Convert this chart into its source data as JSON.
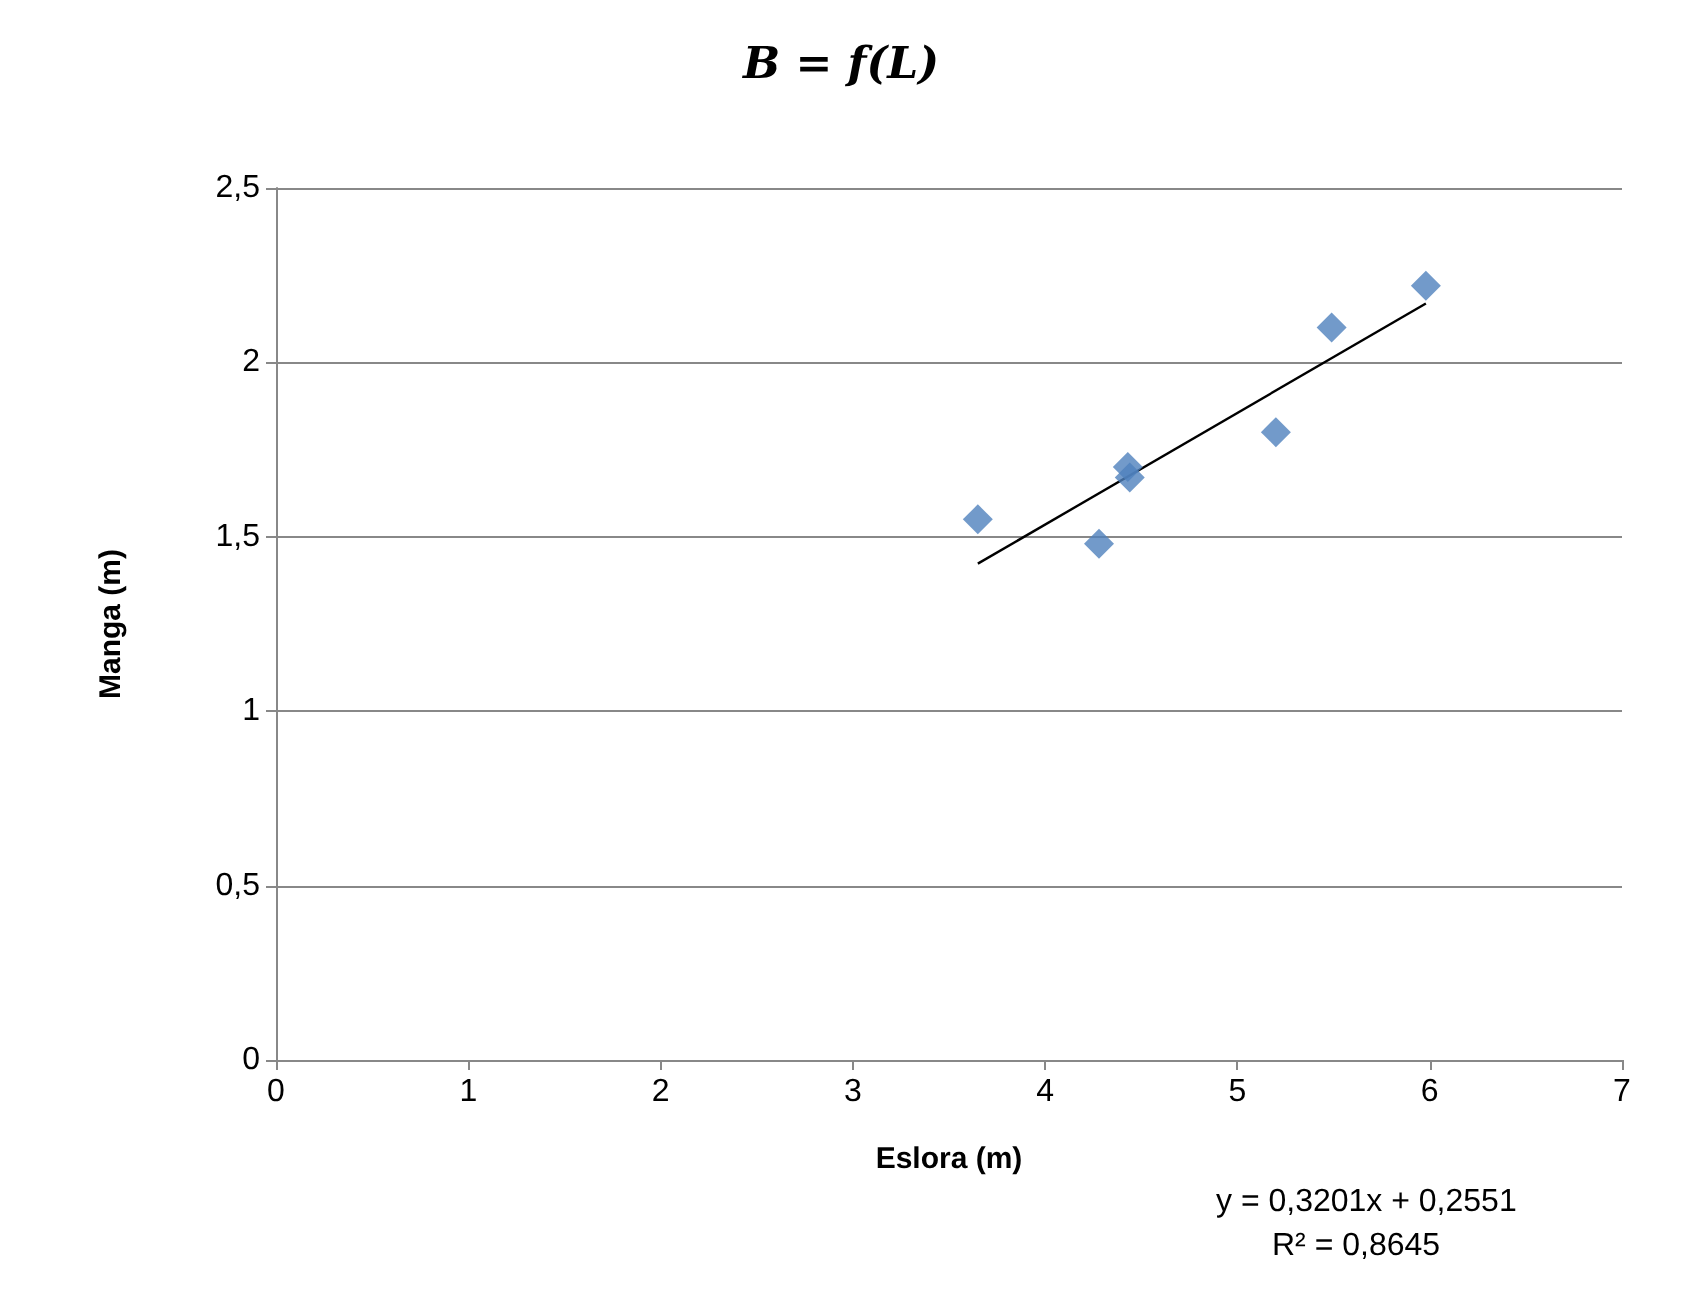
{
  "chart_data": {
    "type": "scatter",
    "title": "B = f(L)",
    "xlabel": "Eslora (m)",
    "ylabel": "Manga (m)",
    "x": [
      3.65,
      4.28,
      4.43,
      4.44,
      5.2,
      5.49,
      5.98
    ],
    "series": [
      {
        "color": "#4f81bd",
        "marker": "diamond",
        "values": [
          1.55,
          1.48,
          1.7,
          1.67,
          1.8,
          2.1,
          2.22
        ]
      },
      {
        "type": "line",
        "color": "#000000",
        "marker": "none",
        "x": [
          3.65,
          5.98
        ],
        "values": [
          1.423,
          2.169
        ]
      }
    ],
    "xlim": [
      0,
      7
    ],
    "xticks": [
      0,
      1,
      2,
      3,
      4,
      5,
      6,
      7
    ],
    "ylim": [
      0,
      2.5
    ],
    "yticks": [
      0,
      {
        "value": 0.5,
        "label": "0,5"
      },
      1,
      {
        "value": 1.5,
        "label": "1,5"
      },
      2,
      {
        "value": 2.5,
        "label": "2,5"
      }
    ],
    "grid": "y",
    "annotations": [
      "y = 0,3201x + 0,2551",
      "R² = 0,8645"
    ]
  }
}
